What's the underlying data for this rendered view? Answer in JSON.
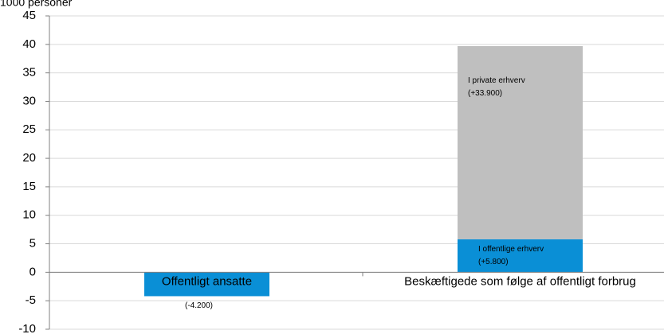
{
  "chart_data": {
    "type": "bar",
    "stacked": true,
    "y_axis_label": "1000 personer",
    "categories": [
      "Offentligt ansatte",
      "Beskæftigede som følge af offentligt forbrug"
    ],
    "series": [
      {
        "name": "I offentlige erhverv",
        "color": "#0a8fd6",
        "values": [
          -4.2,
          5.8
        ],
        "value_labels": [
          "(-4.200)",
          "(+5.800)"
        ]
      },
      {
        "name": "I private erhverv",
        "color": "#bfbfbf",
        "values": [
          null,
          33.9
        ],
        "value_labels": [
          null,
          "(+33.900)"
        ]
      }
    ],
    "ylim": [
      -10,
      45
    ],
    "yticks": [
      -10,
      -5,
      0,
      5,
      10,
      15,
      20,
      25,
      30,
      35,
      40,
      45
    ],
    "grid": true
  }
}
